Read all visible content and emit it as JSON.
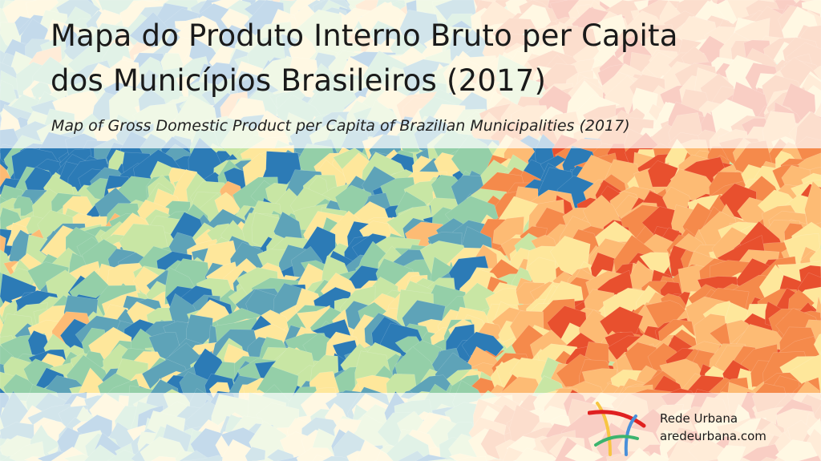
{
  "title_line1": "Mapa do Produto Interno Bruto per Capita",
  "title_line2": "dos Municípios Brasileiros (2017)",
  "subtitle": "Map of Gross Domestic Product per Capita of Brazilian Municipalities (2017)",
  "brand": {
    "name": "Rede Urbana",
    "url": "aredeurbana.com",
    "logo": "rede-urbana-logo"
  },
  "map": {
    "type": "choropleth",
    "palette": [
      "#2c7bb6",
      "#5ea3b8",
      "#94cfa8",
      "#c8e6a4",
      "#fee79b",
      "#fdbb74",
      "#f58a4b",
      "#e8502e",
      "#d7191c"
    ]
  }
}
